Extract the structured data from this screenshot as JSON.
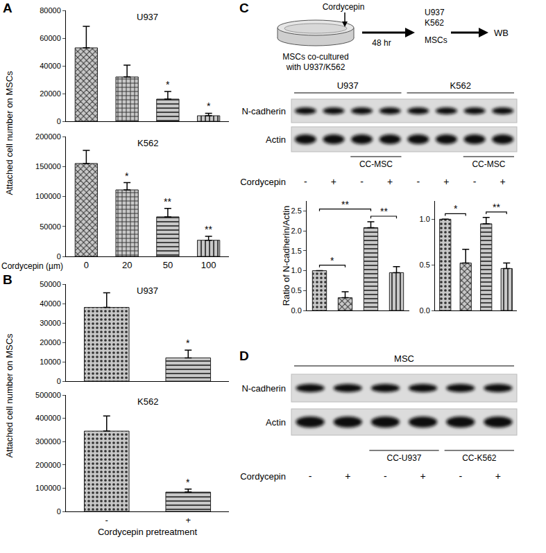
{
  "chart_data": [
    {
      "type": "bar",
      "title": "U937",
      "categories": [
        "0",
        "20",
        "50",
        "100"
      ],
      "values": [
        53000,
        32000,
        16000,
        4000
      ],
      "errors": [
        15500,
        8500,
        5500,
        1800
      ],
      "significance": [
        null,
        null,
        "*",
        "*"
      ],
      "color": "#c8c8c8",
      "ylim": [
        0,
        80000
      ],
      "yticks": [
        0,
        20000,
        40000,
        60000,
        80000
      ],
      "grid": false,
      "tick_labels": "y"
    },
    {
      "type": "bar",
      "title": "K562",
      "categories": [
        "0",
        "20",
        "50",
        "100"
      ],
      "xlabel": "Cordycepin (µm)",
      "values": [
        155000,
        111000,
        66000,
        27000
      ],
      "errors": [
        22000,
        12000,
        14000,
        6500
      ],
      "significance": [
        null,
        "*",
        "**",
        "**"
      ],
      "color": "#c8c8c8",
      "ylim": [
        0,
        200000
      ],
      "yticks": [
        0,
        50000,
        100000,
        150000,
        200000
      ],
      "grid": false,
      "tick_labels": true
    },
    {
      "type": "bar",
      "title": "U937",
      "categories": [
        "-",
        "+"
      ],
      "values": [
        38000,
        12000
      ],
      "errors": [
        7500,
        4000
      ],
      "significance": [
        null,
        "*"
      ],
      "color": "#c8c8c8",
      "ylim": [
        0,
        50000
      ],
      "yticks": [
        0,
        10000,
        20000,
        30000,
        40000,
        50000
      ],
      "grid": false,
      "tick_labels": "y"
    },
    {
      "type": "bar",
      "title": "K562",
      "categories": [
        "-",
        "+"
      ],
      "xlabel": "Cordycepin pretreatment",
      "values": [
        345000,
        83000
      ],
      "errors": [
        65000,
        13000
      ],
      "significance": [
        null,
        "*"
      ],
      "color": "#c8c8c8",
      "ylim": [
        0,
        500000
      ],
      "yticks": [
        0,
        100000,
        200000,
        300000,
        400000,
        500000
      ],
      "grid": false,
      "tick_labels": true
    },
    {
      "type": "bar",
      "categories": [
        null,
        null,
        null,
        null
      ],
      "ylabel": "Ratio of N-cadherin/Actin",
      "values": [
        1.0,
        0.32,
        2.08,
        0.95
      ],
      "errors": [
        0,
        0.15,
        0.15,
        0.15
      ],
      "comparisons": [
        {
          "bars": [
            0,
            1
          ],
          "label": "*"
        },
        {
          "bars": [
            0,
            2
          ],
          "label": "**"
        },
        {
          "bars": [
            2,
            3
          ],
          "label": "**"
        }
      ],
      "color": "#c8c8c8",
      "ylim": [
        0,
        2.75
      ],
      "yticks": [
        {
          "value": 0,
          "label": "0.0"
        },
        {
          "value": 0.5,
          "label": "0.5"
        },
        {
          "value": 1,
          "label": "1.0"
        },
        {
          "value": 1.5,
          "label": "1.5"
        },
        {
          "value": 2,
          "label": "2.0"
        },
        {
          "value": 2.5,
          "label": "2.5"
        }
      ],
      "grid": false,
      "tick_labels": "y"
    },
    {
      "type": "bar",
      "categories": [
        null,
        null,
        null,
        null
      ],
      "values": [
        1.0,
        0.52,
        0.95,
        0.46
      ],
      "errors": [
        0,
        0.15,
        0.07,
        0.06
      ],
      "comparisons": [
        {
          "bars": [
            0,
            1
          ],
          "label": "*"
        },
        {
          "bars": [
            2,
            3
          ],
          "label": "**"
        }
      ],
      "color": "#c8c8c8",
      "ylim": [
        0,
        1.2
      ],
      "yticks": [
        {
          "value": 0,
          "label": "0.0"
        },
        {
          "value": 0.5,
          "label": "0.5"
        },
        {
          "value": 1,
          "label": "1.0"
        }
      ],
      "grid": false,
      "tick_labels": "y"
    }
  ],
  "panels": [
    {
      "letter": "A",
      "ylabel": "Attached cell number on MSCs"
    },
    {
      "letter": "B",
      "ylabel": "Attached cell number on MSCs"
    },
    {
      "letter": "C"
    },
    {
      "letter": "D"
    }
  ],
  "diagram": {
    "treatment": "Cordycepin",
    "time": "48 hr",
    "dish_label": [
      "MSCs co-cultured",
      "with U937/K562"
    ],
    "cells": [
      "U937",
      "K562",
      "MSCs"
    ],
    "assay": "WB"
  },
  "blots": [
    {
      "rows": [
        "N-cadherin",
        "Actin"
      ],
      "groups": [
        {
          "label": "U937",
          "lanes": [
            0,
            3
          ]
        },
        {
          "label": "K562",
          "lanes": [
            4,
            7
          ]
        }
      ],
      "subgroups": [
        {
          "label": "CC-MSC",
          "lanes": [
            2,
            3
          ]
        },
        {
          "label": "CC-MSC",
          "lanes": [
            6,
            7
          ]
        }
      ],
      "treatment": {
        "label": "Cordycepin",
        "values": [
          "-",
          "+",
          "-",
          "+",
          "-",
          "+",
          "-",
          "+"
        ]
      }
    },
    {
      "rows": [
        "N-cadherin",
        "Actin"
      ],
      "groups": [
        {
          "label": "MSC",
          "lanes": [
            0,
            5
          ]
        }
      ],
      "subgroups": [
        {
          "label": "CC-U937",
          "lanes": [
            2,
            3
          ]
        },
        {
          "label": "CC-K562",
          "lanes": [
            4,
            5
          ]
        }
      ],
      "treatment": {
        "label": "Cordycepin",
        "values": [
          "-",
          "+",
          "-",
          "+",
          "-",
          "+"
        ]
      }
    }
  ]
}
